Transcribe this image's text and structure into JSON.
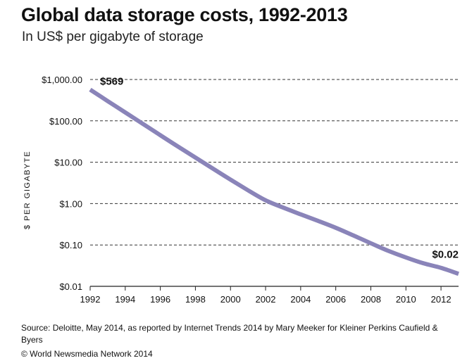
{
  "header": {
    "title": "Global data storage costs, 1992-2013",
    "subtitle": "In US$ per gigabyte of storage"
  },
  "footer": {
    "source": "Source: Deloitte, May 2014, as reported by Internet Trends 2014 by Mary Meeker for Kleiner Perkins Caufield & Byers",
    "copyright": "© World Newsmedia Network 2014"
  },
  "chart_data": {
    "type": "line",
    "title": "Global data storage costs, 1992-2013",
    "subtitle": "In US$ per gigabyte of storage",
    "xlabel": "",
    "ylabel": "$ PER GIGABYTE",
    "yscale": "log",
    "ylim": [
      0.01,
      1000
    ],
    "xlim": [
      1992,
      2013
    ],
    "grid": "horizontal dashed",
    "line_color": "#8a84b9",
    "x_ticks": [
      1992,
      1994,
      1996,
      1998,
      2000,
      2002,
      2004,
      2006,
      2008,
      2010,
      2012
    ],
    "y_ticks": [
      {
        "value": 1000,
        "label": "$1,000.00"
      },
      {
        "value": 100,
        "label": "$100.00"
      },
      {
        "value": 10,
        "label": "$10.00"
      },
      {
        "value": 1,
        "label": "$1.00"
      },
      {
        "value": 0.1,
        "label": "$0.10"
      },
      {
        "value": 0.01,
        "label": "$0.01"
      }
    ],
    "series": [
      {
        "x": [
          1992,
          1993,
          1994,
          1995,
          1996,
          1997,
          1998,
          1999,
          2000,
          2001,
          2002,
          2003,
          2004,
          2005,
          2006,
          2007,
          2008,
          2009,
          2010,
          2011,
          2012,
          2013
        ],
        "values": [
          569,
          300,
          160,
          85,
          45,
          24,
          13,
          7,
          3.8,
          2.1,
          1.2,
          0.8,
          0.55,
          0.38,
          0.26,
          0.17,
          0.11,
          0.072,
          0.05,
          0.036,
          0.028,
          0.02
        ]
      }
    ],
    "annotations": [
      {
        "x": 1992,
        "y": 569,
        "label": "$569"
      },
      {
        "x": 2013,
        "y": 0.02,
        "label": "$0.02"
      }
    ]
  }
}
